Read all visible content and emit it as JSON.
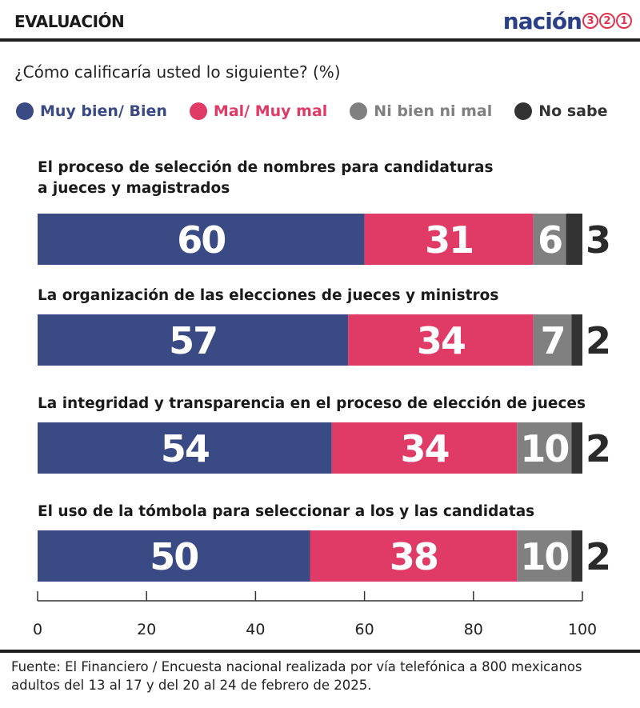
{
  "header": {
    "section": "EVALUACIÓN",
    "brand_text": "nación",
    "brand_digits": [
      "3",
      "2",
      "1"
    ]
  },
  "question": "¿Cómo calificaría usted lo siguiente? (%)",
  "legend": [
    {
      "label": "Muy bien/ Bien",
      "color": "#394a85"
    },
    {
      "label": "Mal/ Muy mal",
      "color": "#e03a66"
    },
    {
      "label": "Ni bien ni mal",
      "color": "#808080"
    },
    {
      "label": "No sabe",
      "color": "#333333"
    }
  ],
  "chart_data": {
    "type": "bar",
    "orientation": "horizontal",
    "stacked": true,
    "categories": [
      [
        "El proceso de selección de nombres para candidaturas",
        "a jueces y magistrados"
      ],
      [
        "La organización de las elecciones de jueces y ministros"
      ],
      [
        "La integridad y transparencia en el proceso de elección de jueces"
      ],
      [
        "El uso de la tómbola para seleccionar a los y las candidatas"
      ]
    ],
    "series": [
      {
        "name": "Muy bien/ Bien",
        "color": "#394a85",
        "values": [
          60,
          57,
          54,
          50
        ]
      },
      {
        "name": "Mal/ Muy mal",
        "color": "#e03a66",
        "values": [
          31,
          34,
          34,
          38
        ]
      },
      {
        "name": "Ni bien ni mal",
        "color": "#808080",
        "values": [
          6,
          7,
          10,
          10
        ]
      },
      {
        "name": "No sabe",
        "color": "#333333",
        "values": [
          3,
          2,
          2,
          2
        ]
      }
    ],
    "xlim": [
      0,
      100
    ],
    "xticks": [
      0,
      20,
      40,
      60,
      80,
      100
    ],
    "legend_position": "top",
    "grid": false
  },
  "footnote": "Fuente: El Financiero / Encuesta nacional realizada por vía telefónica a 800 mexicanos adultos del 13 al 17 y del 20 al 24 de febrero de 2025."
}
